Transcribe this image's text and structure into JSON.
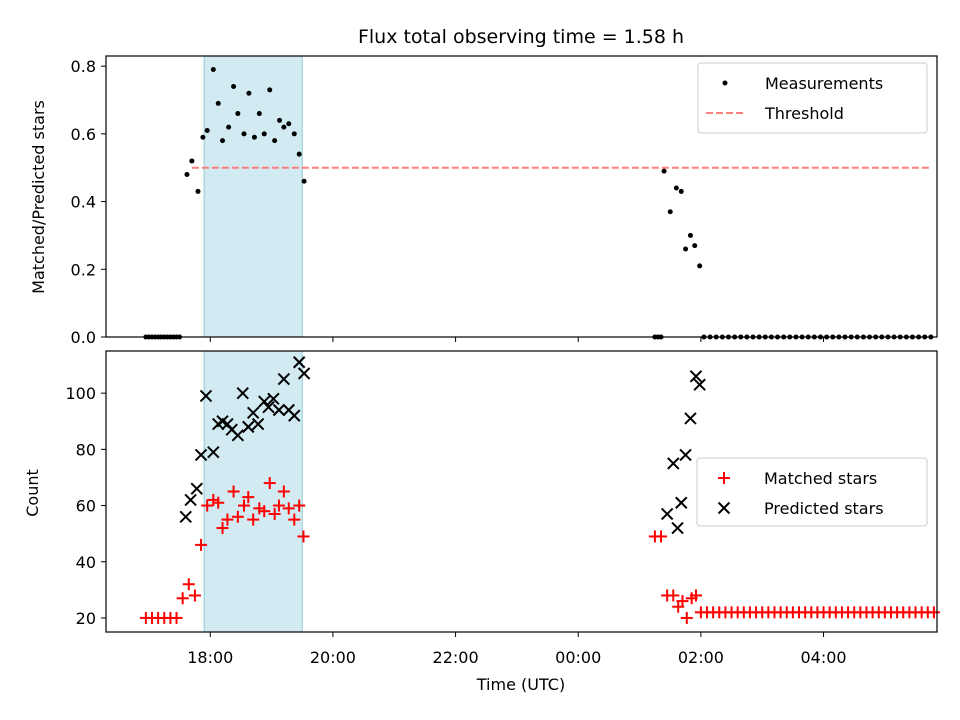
{
  "chart_data": [
    {
      "type": "scatter",
      "title": "Flux total observing time = 1.58 h",
      "xlabel": "",
      "ylabel": "Matched/Predicted stars",
      "xlim_hours": [
        16.3,
        29.85
      ],
      "ylim": [
        0,
        0.83
      ],
      "yticks": [
        0.0,
        0.2,
        0.4,
        0.6,
        0.8
      ],
      "ytick_labels": [
        "0.0",
        "0.2",
        "0.4",
        "0.6",
        "0.8"
      ],
      "shaded_band": {
        "x": [
          17.9,
          19.5
        ],
        "color": "#add8e6"
      },
      "threshold": {
        "name": "Threshold",
        "value": 0.5,
        "x": [
          17.7,
          29.75
        ],
        "color": "#ff7f7f",
        "style": "dashed"
      },
      "legend": {
        "placement": "top-right",
        "entries": [
          "Measurements",
          "Threshold"
        ]
      },
      "series": [
        {
          "name": "Measurements",
          "color": "#000000",
          "marker": "dot",
          "points": [
            [
              16.95,
              0
            ],
            [
              17.0,
              0
            ],
            [
              17.05,
              0
            ],
            [
              17.1,
              0
            ],
            [
              17.15,
              0
            ],
            [
              17.2,
              0
            ],
            [
              17.25,
              0
            ],
            [
              17.3,
              0
            ],
            [
              17.35,
              0
            ],
            [
              17.4,
              0
            ],
            [
              17.45,
              0
            ],
            [
              17.5,
              0
            ],
            [
              17.62,
              0.48
            ],
            [
              17.7,
              0.52
            ],
            [
              17.8,
              0.43
            ],
            [
              17.88,
              0.59
            ],
            [
              17.95,
              0.61
            ],
            [
              18.05,
              0.79
            ],
            [
              18.13,
              0.69
            ],
            [
              18.2,
              0.58
            ],
            [
              18.3,
              0.62
            ],
            [
              18.38,
              0.74
            ],
            [
              18.45,
              0.66
            ],
            [
              18.55,
              0.6
            ],
            [
              18.63,
              0.72
            ],
            [
              18.72,
              0.59
            ],
            [
              18.8,
              0.66
            ],
            [
              18.88,
              0.6
            ],
            [
              18.97,
              0.73
            ],
            [
              19.05,
              0.58
            ],
            [
              19.13,
              0.64
            ],
            [
              19.2,
              0.62
            ],
            [
              19.28,
              0.63
            ],
            [
              19.37,
              0.6
            ],
            [
              19.45,
              0.54
            ],
            [
              19.53,
              0.46
            ],
            [
              25.25,
              0
            ],
            [
              25.3,
              0
            ],
            [
              25.35,
              0
            ],
            [
              25.4,
              0.49
            ],
            [
              25.5,
              0.37
            ],
            [
              25.6,
              0.44
            ],
            [
              25.68,
              0.43
            ],
            [
              25.75,
              0.26
            ],
            [
              25.83,
              0.3
            ],
            [
              25.9,
              0.27
            ],
            [
              25.98,
              0.21
            ],
            [
              26.05,
              0
            ],
            [
              26.15,
              0
            ],
            [
              26.25,
              0
            ],
            [
              26.35,
              0
            ],
            [
              26.45,
              0
            ],
            [
              26.55,
              0
            ],
            [
              26.65,
              0
            ],
            [
              26.75,
              0
            ],
            [
              26.85,
              0
            ],
            [
              26.95,
              0
            ],
            [
              27.05,
              0
            ],
            [
              27.15,
              0
            ],
            [
              27.25,
              0
            ],
            [
              27.35,
              0
            ],
            [
              27.45,
              0
            ],
            [
              27.55,
              0
            ],
            [
              27.65,
              0
            ],
            [
              27.75,
              0
            ],
            [
              27.85,
              0
            ],
            [
              27.95,
              0
            ],
            [
              28.05,
              0
            ],
            [
              28.15,
              0
            ],
            [
              28.25,
              0
            ],
            [
              28.35,
              0
            ],
            [
              28.45,
              0
            ],
            [
              28.55,
              0
            ],
            [
              28.65,
              0
            ],
            [
              28.75,
              0
            ],
            [
              28.85,
              0
            ],
            [
              28.95,
              0
            ],
            [
              29.05,
              0
            ],
            [
              29.15,
              0
            ],
            [
              29.25,
              0
            ],
            [
              29.35,
              0
            ],
            [
              29.45,
              0
            ],
            [
              29.55,
              0
            ],
            [
              29.65,
              0
            ],
            [
              29.75,
              0
            ]
          ]
        }
      ]
    },
    {
      "type": "scatter",
      "title": "",
      "xlabel": "Time (UTC)",
      "ylabel": "Count",
      "xlim_hours": [
        16.3,
        29.85
      ],
      "ylim": [
        15,
        115
      ],
      "yticks": [
        20,
        40,
        60,
        80,
        100
      ],
      "ytick_labels": [
        "20",
        "40",
        "60",
        "80",
        "100"
      ],
      "xticks_hours": [
        18,
        20,
        22,
        24,
        26,
        28
      ],
      "xtick_labels": [
        "18:00",
        "20:00",
        "22:00",
        "00:00",
        "02:00",
        "04:00"
      ],
      "shaded_band": {
        "x": [
          17.9,
          19.5
        ],
        "color": "#add8e6"
      },
      "legend": {
        "placement": "right",
        "entries": [
          "Matched stars",
          "Predicted stars"
        ]
      },
      "series": [
        {
          "name": "Matched stars",
          "color": "#ff0000",
          "marker": "plus",
          "points": [
            [
              16.95,
              20
            ],
            [
              17.05,
              20
            ],
            [
              17.15,
              20
            ],
            [
              17.25,
              20
            ],
            [
              17.35,
              20
            ],
            [
              17.45,
              20
            ],
            [
              17.55,
              27
            ],
            [
              17.65,
              32
            ],
            [
              17.75,
              28
            ],
            [
              17.85,
              46
            ],
            [
              17.95,
              60
            ],
            [
              18.05,
              62
            ],
            [
              18.13,
              61
            ],
            [
              18.2,
              52
            ],
            [
              18.28,
              55
            ],
            [
              18.38,
              65
            ],
            [
              18.45,
              56
            ],
            [
              18.55,
              60
            ],
            [
              18.62,
              63
            ],
            [
              18.7,
              55
            ],
            [
              18.8,
              59
            ],
            [
              18.88,
              58
            ],
            [
              18.97,
              68
            ],
            [
              19.05,
              57
            ],
            [
              19.12,
              60
            ],
            [
              19.2,
              65
            ],
            [
              19.28,
              59
            ],
            [
              19.37,
              55
            ],
            [
              19.45,
              60
            ],
            [
              19.52,
              49
            ],
            [
              25.25,
              49
            ],
            [
              25.35,
              49
            ],
            [
              25.45,
              28
            ],
            [
              25.55,
              28
            ],
            [
              25.63,
              24
            ],
            [
              25.7,
              26
            ],
            [
              25.77,
              20
            ],
            [
              25.85,
              27
            ],
            [
              25.92,
              28
            ],
            [
              26.0,
              22
            ],
            [
              26.1,
              22
            ],
            [
              26.2,
              22
            ],
            [
              26.3,
              22
            ],
            [
              26.4,
              22
            ],
            [
              26.5,
              22
            ],
            [
              26.6,
              22
            ],
            [
              26.7,
              22
            ],
            [
              26.8,
              22
            ],
            [
              26.9,
              22
            ],
            [
              27.0,
              22
            ],
            [
              27.1,
              22
            ],
            [
              27.2,
              22
            ],
            [
              27.3,
              22
            ],
            [
              27.4,
              22
            ],
            [
              27.5,
              22
            ],
            [
              27.6,
              22
            ],
            [
              27.7,
              22
            ],
            [
              27.8,
              22
            ],
            [
              27.9,
              22
            ],
            [
              28.0,
              22
            ],
            [
              28.1,
              22
            ],
            [
              28.2,
              22
            ],
            [
              28.3,
              22
            ],
            [
              28.4,
              22
            ],
            [
              28.5,
              22
            ],
            [
              28.6,
              22
            ],
            [
              28.7,
              22
            ],
            [
              28.8,
              22
            ],
            [
              28.9,
              22
            ],
            [
              29.0,
              22
            ],
            [
              29.1,
              22
            ],
            [
              29.2,
              22
            ],
            [
              29.3,
              22
            ],
            [
              29.4,
              22
            ],
            [
              29.5,
              22
            ],
            [
              29.6,
              22
            ],
            [
              29.7,
              22
            ],
            [
              29.8,
              22
            ]
          ]
        },
        {
          "name": "Predicted stars",
          "color": "#000000",
          "marker": "x",
          "points": [
            [
              17.6,
              56
            ],
            [
              17.68,
              62
            ],
            [
              17.78,
              66
            ],
            [
              17.85,
              78
            ],
            [
              17.93,
              99
            ],
            [
              18.05,
              79
            ],
            [
              18.13,
              89
            ],
            [
              18.2,
              90
            ],
            [
              18.28,
              89
            ],
            [
              18.35,
              87
            ],
            [
              18.45,
              85
            ],
            [
              18.53,
              100
            ],
            [
              18.62,
              88
            ],
            [
              18.7,
              93
            ],
            [
              18.78,
              89
            ],
            [
              18.88,
              97
            ],
            [
              18.95,
              95
            ],
            [
              19.03,
              98
            ],
            [
              19.12,
              94
            ],
            [
              19.2,
              105
            ],
            [
              19.28,
              94
            ],
            [
              19.37,
              92
            ],
            [
              19.45,
              111
            ],
            [
              19.53,
              107
            ],
            [
              25.45,
              57
            ],
            [
              25.55,
              75
            ],
            [
              25.62,
              52
            ],
            [
              25.68,
              61
            ],
            [
              25.75,
              78
            ],
            [
              25.83,
              91
            ],
            [
              25.92,
              106
            ],
            [
              25.98,
              103
            ]
          ]
        }
      ]
    }
  ]
}
